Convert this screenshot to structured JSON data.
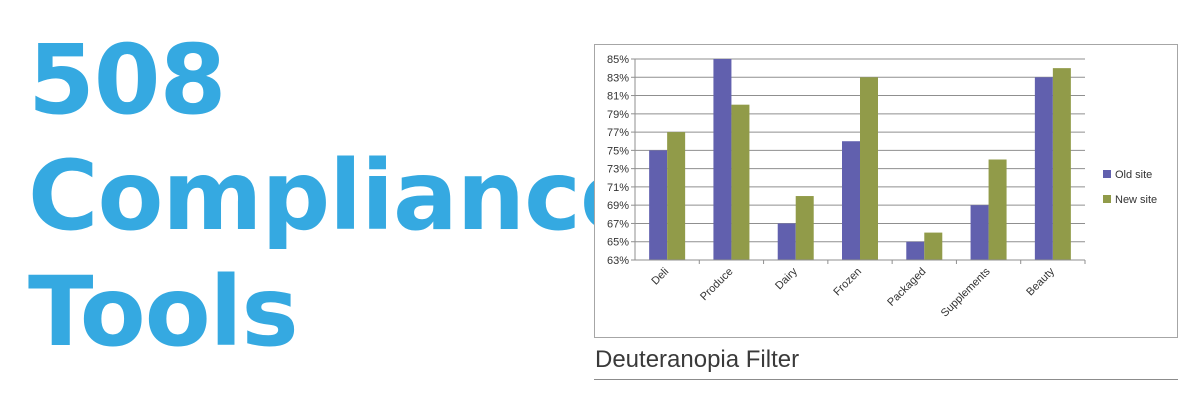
{
  "headline": {
    "line1": "508",
    "line2": "Compliance",
    "line3": "Tools"
  },
  "caption": "Deuteranopia Filter",
  "colors": {
    "headline": "#35a9e1",
    "old_site": "#6160ae",
    "new_site": "#919b49"
  },
  "chart_data": {
    "type": "bar",
    "title": "",
    "xlabel": "",
    "ylabel": "",
    "categories": [
      "Deli",
      "Produce",
      "Dairy",
      "Frozen",
      "Packaged",
      "Supplements",
      "Beauty"
    ],
    "series": [
      {
        "name": "Old site",
        "values": [
          75,
          85,
          67,
          76,
          65,
          69,
          83
        ]
      },
      {
        "name": "New site",
        "values": [
          77,
          80,
          70,
          83,
          66,
          74,
          84
        ]
      }
    ],
    "ylim": [
      63,
      85
    ],
    "yticks": [
      "63%",
      "65%",
      "67%",
      "69%",
      "71%",
      "73%",
      "75%",
      "77%",
      "79%",
      "81%",
      "83%",
      "85%"
    ],
    "grid": true,
    "legend": "right"
  }
}
